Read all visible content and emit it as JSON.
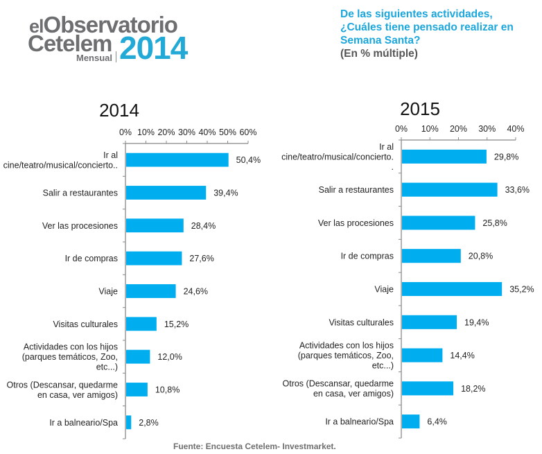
{
  "header": {
    "logo": {
      "line1_prefix": "el",
      "line1_main": "Observatorio",
      "line2": "Cetelem",
      "edition": "Mensual",
      "year": "2014"
    },
    "question": "De las siguientes actividades,\n¿Cuáles tiene pensado realizar en\nSemana Santa?",
    "question_sub": "(En % múltiple)"
  },
  "footer": {
    "source": "Fuente: Encuesta Cetelem- Investmarket."
  },
  "colors": {
    "bar": "#00adef",
    "axis": "#888888",
    "brand_blue": "#22a9d6",
    "brand_gray": "#6d6e70"
  },
  "chart_data": [
    {
      "type": "bar",
      "orientation": "horizontal",
      "title": "2014",
      "categories": [
        "Ir al cine/teatro/musical/concierto..",
        "Salir a restaurantes",
        "Ver las procesiones",
        "Ir de compras",
        "Viaje",
        "Visitas culturales",
        "Actividades con los hijos (parques temáticos, Zoo, etc...)",
        "Otros (Descansar, quedarme en casa, ver amigos)",
        "Ir a balneario/Spa"
      ],
      "category_lines": [
        [
          "Ir al",
          "cine/teatro/musical/concierto.."
        ],
        [
          "Salir a restaurantes"
        ],
        [
          "Ver las procesiones"
        ],
        [
          "Ir de compras"
        ],
        [
          "Viaje"
        ],
        [
          "Visitas culturales"
        ],
        [
          "Actividades con los hijos",
          "(parques temáticos, Zoo,",
          "etc...)"
        ],
        [
          "Otros (Descansar, quedarme",
          "en casa, ver amigos)"
        ],
        [
          "Ir a balneario/Spa"
        ]
      ],
      "values": [
        50.4,
        39.4,
        28.4,
        27.6,
        24.6,
        15.2,
        12.0,
        10.8,
        2.8
      ],
      "value_labels": [
        "50,4%",
        "39,4%",
        "28,4%",
        "27,6%",
        "24,6%",
        "15,2%",
        "12,0%",
        "10,8%",
        "2,8%"
      ],
      "xlim": [
        0,
        60
      ],
      "xticks": [
        0,
        10,
        20,
        30,
        40,
        50,
        60
      ],
      "xtick_labels": [
        "0%",
        "10%",
        "20%",
        "30%",
        "40%",
        "50%",
        "60%"
      ],
      "xaxis_position": "top",
      "grid": false,
      "legend": "none"
    },
    {
      "type": "bar",
      "orientation": "horizontal",
      "title": "2015",
      "categories": [
        "Ir al cine/teatro/musical/concierto..",
        "Salir a restaurantes",
        "Ver las procesiones",
        "Ir de compras",
        "Viaje",
        "Visitas culturales",
        "Actividades con los hijos (parques temáticos, Zoo, etc...)",
        "Otros (Descansar, quedarme en casa, ver amigos)",
        "Ir a balneario/Spa"
      ],
      "category_lines": [
        [
          "Ir al",
          "cine/teatro/musical/concierto.",
          "."
        ],
        [
          "Salir a restaurantes"
        ],
        [
          "Ver las procesiones"
        ],
        [
          "Ir de compras"
        ],
        [
          "Viaje"
        ],
        [
          "Visitas culturales"
        ],
        [
          "Actividades con los hijos",
          "(parques temáticos, Zoo,",
          "etc...)"
        ],
        [
          "Otros (Descansar, quedarme",
          "en casa, ver amigos)"
        ],
        [
          "Ir a balneario/Spa"
        ]
      ],
      "values": [
        29.8,
        33.6,
        25.8,
        20.8,
        35.2,
        19.4,
        14.4,
        18.2,
        6.4
      ],
      "value_labels": [
        "29,8%",
        "33,6%",
        "25,8%",
        "20,8%",
        "35,2%",
        "19,4%",
        "14,4%",
        "18,2%",
        "6,4%"
      ],
      "xlim": [
        0,
        40
      ],
      "xticks": [
        0,
        10,
        20,
        30,
        40
      ],
      "xtick_labels": [
        "0%",
        "10%",
        "20%",
        "30%",
        "40%"
      ],
      "xaxis_position": "top",
      "grid": false,
      "legend": "none"
    }
  ]
}
